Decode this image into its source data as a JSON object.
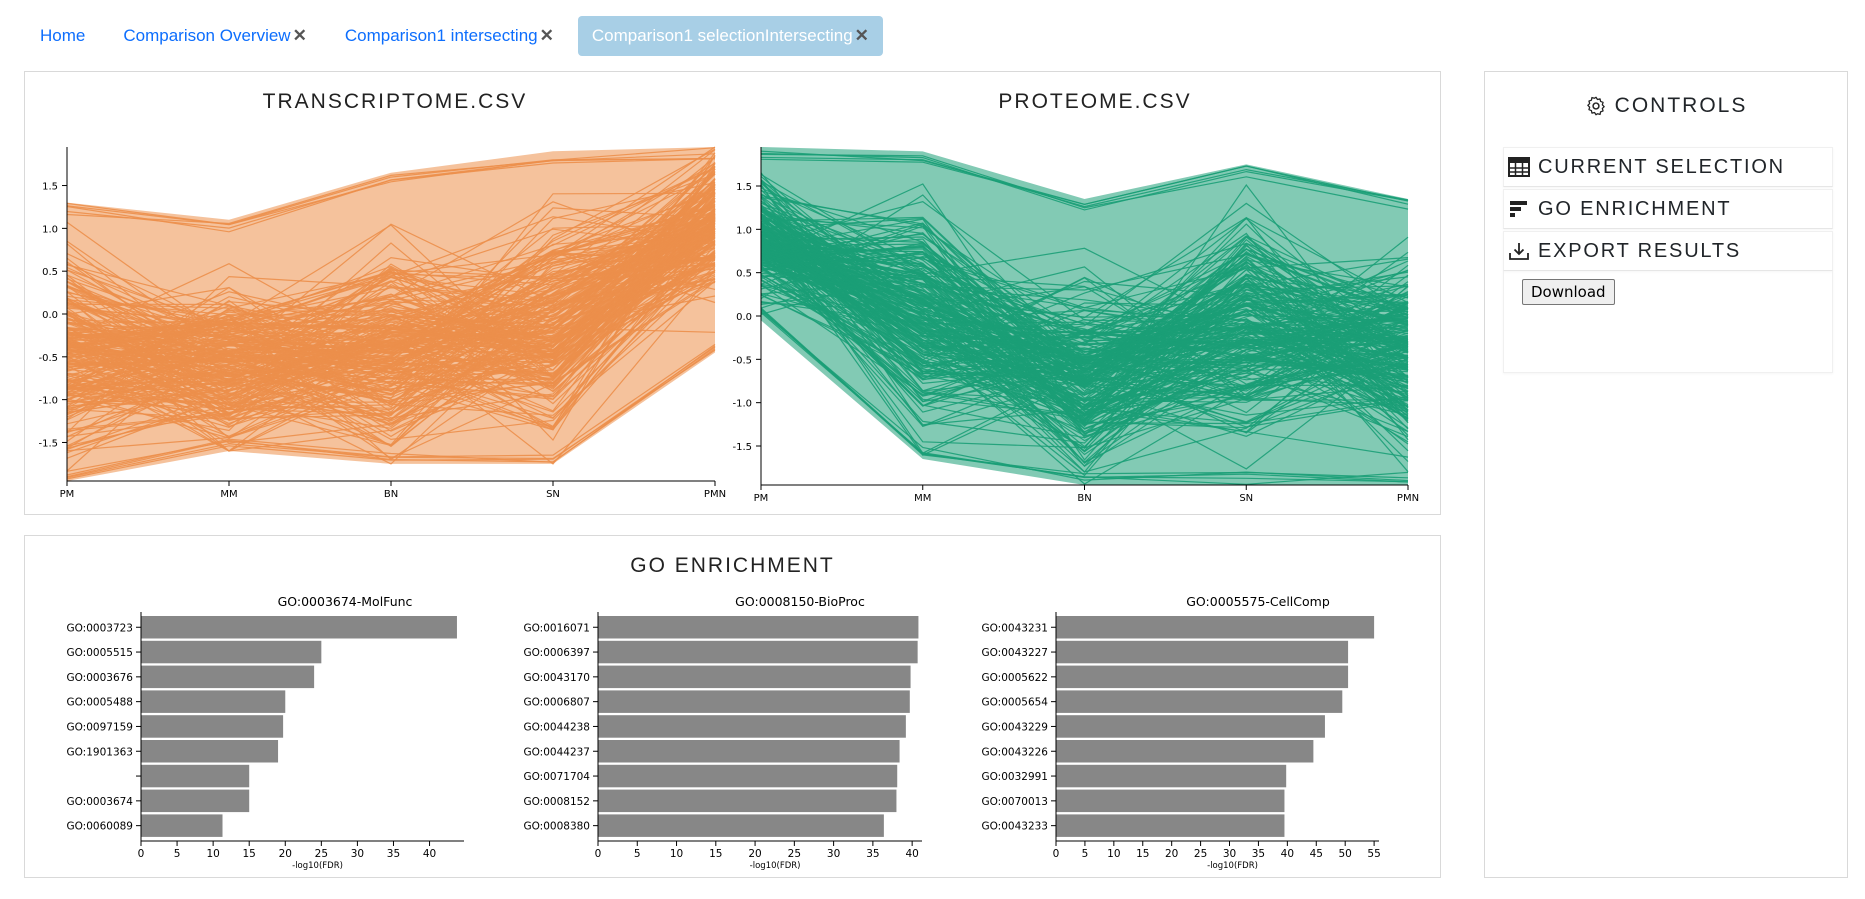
{
  "tabs": [
    {
      "label": "Home",
      "closable": false,
      "active": false
    },
    {
      "label": "Comparison Overview",
      "closable": true,
      "active": false
    },
    {
      "label": "Comparison1 intersecting",
      "closable": true,
      "active": false
    },
    {
      "label": "Comparison1 selectionIntersecting",
      "closable": true,
      "active": true
    }
  ],
  "tab_close_glyph": "✕",
  "parallel": {
    "charts": [
      {
        "title": "TRANSCRIPTOME.CSV",
        "color": "#ec8f4b"
      },
      {
        "title": "PROTEOME.CSV",
        "color": "#1b9e77"
      }
    ]
  },
  "go_panel": {
    "title": "GO ENRICHMENT"
  },
  "controls": {
    "title": "CONTROLS",
    "title_icon": "gear-icon",
    "sections": [
      {
        "label": "CURRENT SELECTION",
        "icon": "table-icon"
      },
      {
        "label": "GO ENRICHMENT",
        "icon": "bar-chart-icon"
      },
      {
        "label": "EXPORT RESULTS",
        "icon": "download-icon"
      }
    ],
    "download_label": "Download"
  },
  "chart_data": [
    {
      "type": "line",
      "title": "TRANSCRIPTOME.CSV",
      "x": [
        "PM",
        "MM",
        "BN",
        "SN",
        "PMN"
      ],
      "yticks": [
        1.5,
        1.0,
        0.5,
        0.0,
        -0.5,
        -1.0,
        -1.5
      ],
      "ylim": [
        -1.95,
        1.95
      ],
      "series_color": "#ec8f4b",
      "profile_mean": [
        -0.45,
        -0.6,
        -0.5,
        -0.1,
        1.05
      ],
      "profile_min": [
        -1.95,
        -1.6,
        -1.75,
        -1.75,
        -0.45
      ],
      "profile_max": [
        1.3,
        1.1,
        1.65,
        1.9,
        1.95
      ]
    },
    {
      "type": "line",
      "title": "PROTEOME.CSV",
      "x": [
        "PM",
        "MM",
        "BN",
        "SN",
        "PMN"
      ],
      "yticks": [
        1.5,
        1.0,
        0.5,
        0.0,
        -0.5,
        -1.0,
        -1.5
      ],
      "ylim": [
        -1.95,
        1.95
      ],
      "series_color": "#1b9e77",
      "profile_mean": [
        0.9,
        0.0,
        -0.7,
        -0.1,
        -0.4
      ],
      "profile_min": [
        -0.05,
        -1.65,
        -1.95,
        -1.95,
        -1.95
      ],
      "profile_max": [
        1.95,
        1.9,
        1.35,
        1.75,
        1.35
      ]
    },
    {
      "type": "bar",
      "orientation": "horizontal",
      "title": "GO:0003674-MolFunc",
      "xlabel": "-log10(FDR)",
      "xticks": [
        0,
        5,
        10,
        15,
        20,
        25,
        30,
        35,
        40
      ],
      "xlim": [
        0,
        44.5
      ],
      "categories": [
        "GO:0003723",
        "GO:0005515",
        "GO:0003676",
        "GO:0005488",
        "GO:0097159",
        "GO:1901363",
        "",
        "GO:0003674",
        "GO:0060089"
      ],
      "values": [
        43.8,
        25.0,
        24.0,
        20.0,
        19.7,
        19.0,
        15.0,
        15.0,
        11.3
      ]
    },
    {
      "type": "bar",
      "orientation": "horizontal",
      "title": "GO:0008150-BioProc",
      "xlabel": "-log10(FDR)",
      "xticks": [
        0,
        5,
        10,
        15,
        20,
        25,
        30,
        35,
        40
      ],
      "xlim": [
        0,
        41
      ],
      "categories": [
        "GO:0016071",
        "GO:0006397",
        "GO:0043170",
        "GO:0006807",
        "GO:0044238",
        "GO:0044237",
        "GO:0071704",
        "GO:0008152",
        "GO:0008380"
      ],
      "values": [
        40.8,
        40.7,
        39.8,
        39.7,
        39.2,
        38.4,
        38.1,
        38.0,
        36.4
      ]
    },
    {
      "type": "bar",
      "orientation": "horizontal",
      "title": "GO:0005575-CellComp",
      "xlabel": "-log10(FDR)",
      "xticks": [
        0,
        5,
        10,
        15,
        20,
        25,
        30,
        35,
        40,
        45,
        50,
        55
      ],
      "xlim": [
        0,
        55.5
      ],
      "categories": [
        "GO:0043231",
        "GO:0043227",
        "GO:0005622",
        "GO:0005654",
        "GO:0043229",
        "GO:0043226",
        "GO:0032991",
        "GO:0070013",
        "GO:0043233"
      ],
      "values": [
        55.0,
        50.5,
        50.5,
        49.5,
        46.5,
        44.5,
        39.8,
        39.5,
        39.5
      ]
    }
  ]
}
